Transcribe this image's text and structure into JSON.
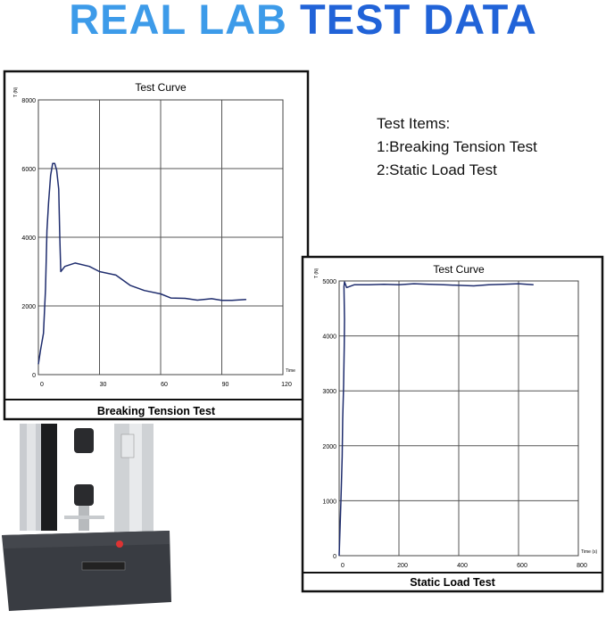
{
  "header": {
    "title_part1": "REAL LAB",
    "title_part2": "TEST DATA",
    "title_color1": "#3d9be9",
    "title_color2": "#2163d8"
  },
  "test_items": {
    "heading": "Test Items:",
    "items": [
      "1:Breaking Tension Test",
      "2:Static Load Test"
    ]
  },
  "chart_data": [
    {
      "type": "line",
      "title": "Test Curve",
      "caption": "Breaking Tension Test",
      "ylabel": "T (N)",
      "xlabel": "Time",
      "xlim": [
        0,
        120
      ],
      "ylim": [
        0,
        8000
      ],
      "xticks": [
        0,
        30,
        60,
        90,
        120
      ],
      "yticks": [
        0,
        2000,
        4000,
        6000,
        8000
      ],
      "grid": true,
      "line_color": "#1f2d6e",
      "x": [
        0,
        1,
        2.5,
        3.5,
        4.2,
        5,
        6,
        7,
        8,
        9,
        10,
        10.5,
        11,
        13,
        18,
        25,
        30,
        38,
        45,
        52,
        60,
        65,
        72,
        78,
        85,
        90,
        95,
        102
      ],
      "y": [
        300,
        700,
        1200,
        2500,
        4200,
        5000,
        5800,
        6150,
        6150,
        5950,
        5400,
        4000,
        3000,
        3150,
        3250,
        3150,
        3000,
        2900,
        2600,
        2450,
        2350,
        2230,
        2220,
        2170,
        2210,
        2160,
        2160,
        2190
      ]
    },
    {
      "type": "line",
      "title": "Test Curve",
      "caption": "Static Load Test",
      "ylabel": "T (N)",
      "xlabel": "Time (s)",
      "xlim": [
        0,
        800
      ],
      "ylim": [
        0,
        5000
      ],
      "xticks": [
        0,
        200,
        400,
        600,
        800
      ],
      "yticks": [
        0,
        1000,
        2000,
        3000,
        4000,
        5000
      ],
      "grid": true,
      "line_color": "#1f2d6e",
      "x": [
        0,
        3,
        6,
        10,
        12,
        15,
        17,
        18,
        16,
        18,
        25,
        50,
        100,
        150,
        200,
        250,
        300,
        350,
        400,
        450,
        500,
        550,
        600,
        650
      ],
      "y": [
        0,
        500,
        1000,
        1800,
        2500,
        3100,
        3800,
        4300,
        4900,
        4980,
        4880,
        4930,
        4930,
        4940,
        4930,
        4950,
        4940,
        4930,
        4920,
        4910,
        4930,
        4940,
        4950,
        4930
      ]
    }
  ]
}
